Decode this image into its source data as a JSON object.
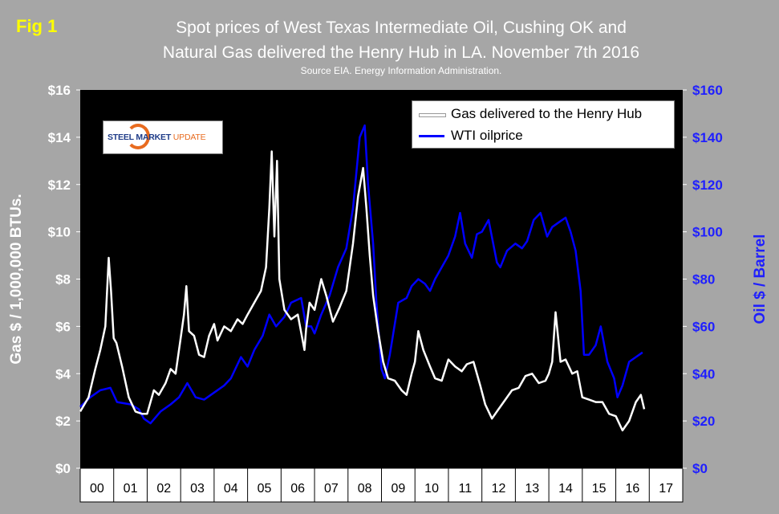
{
  "fig_label": "Fig 1",
  "title_line1": "Spot prices of West Texas Intermediate Oil, Cushing OK and",
  "title_line2": "Natural Gas delivered the Henry Hub in LA. November 7th 2016",
  "subtitle": "Source EIA. Energy Information Administration.",
  "logo": {
    "text_bold": "STEEL MARKET",
    "text_light": "UPDATE"
  },
  "colors": {
    "background": "#a6a6a6",
    "plot": "#000000",
    "gas": "#ffffff",
    "oil": "#0000ff",
    "left_axis": "#ffffff",
    "right_axis": "#1f1fff",
    "x_axis_text": "#000000"
  },
  "chart_data": {
    "type": "line",
    "x_unit": "year",
    "xlim": [
      2000,
      2018
    ],
    "x_tick_labels": [
      "00",
      "01",
      "02",
      "03",
      "04",
      "05",
      "06",
      "07",
      "08",
      "09",
      "10",
      "11",
      "12",
      "13",
      "14",
      "15",
      "16",
      "17"
    ],
    "ylabel_left": "Gas $ / 1,000,000 BTUs.",
    "ylabel_right": "Oil $ / Barrel",
    "ylim_left": [
      0,
      16
    ],
    "ylim_right": [
      0,
      160
    ],
    "y_ticks_left": [
      "$0",
      "$2",
      "$4",
      "$6",
      "$8",
      "$10",
      "$12",
      "$14",
      "$16"
    ],
    "y_ticks_right": [
      "$0",
      "$20",
      "$40",
      "$60",
      "$80",
      "$100",
      "$120",
      "$140",
      "$160"
    ],
    "grid": false,
    "legend_position": "top-right",
    "series": [
      {
        "name": "Gas delivered to the Henry Hub",
        "axis": "left",
        "color": "#ffffff",
        "x": [
          2000.0,
          2000.25,
          2000.45,
          2000.6,
          2000.75,
          2000.85,
          2000.92,
          2001.0,
          2001.08,
          2001.25,
          2001.45,
          2001.65,
          2001.85,
          2002.0,
          2002.2,
          2002.35,
          2002.55,
          2002.7,
          2002.85,
          2003.0,
          2003.1,
          2003.17,
          2003.25,
          2003.4,
          2003.55,
          2003.7,
          2003.85,
          2004.0,
          2004.1,
          2004.3,
          2004.5,
          2004.7,
          2004.85,
          2005.0,
          2005.2,
          2005.4,
          2005.55,
          2005.65,
          2005.72,
          2005.8,
          2005.88,
          2005.95,
          2006.1,
          2006.3,
          2006.5,
          2006.7,
          2006.75,
          2006.85,
          2007.0,
          2007.2,
          2007.35,
          2007.55,
          2007.75,
          2007.95,
          2008.15,
          2008.3,
          2008.45,
          2008.55,
          2008.65,
          2008.75,
          2008.9,
          2009.05,
          2009.2,
          2009.4,
          2009.6,
          2009.75,
          2009.9,
          2010.0,
          2010.1,
          2010.25,
          2010.45,
          2010.6,
          2010.8,
          2011.0,
          2011.2,
          2011.4,
          2011.55,
          2011.75,
          2011.95,
          2012.1,
          2012.3,
          2012.5,
          2012.7,
          2012.9,
          2013.1,
          2013.3,
          2013.5,
          2013.7,
          2013.9,
          2014.0,
          2014.1,
          2014.2,
          2014.35,
          2014.5,
          2014.7,
          2014.85,
          2015.0,
          2015.2,
          2015.4,
          2015.6,
          2015.8,
          2016.0,
          2016.2,
          2016.4,
          2016.6,
          2016.75,
          2016.85
        ],
        "y": [
          2.4,
          3.0,
          4.2,
          5.0,
          6.0,
          8.9,
          7.5,
          5.5,
          5.3,
          4.3,
          3.0,
          2.4,
          2.3,
          2.3,
          3.3,
          3.1,
          3.6,
          4.2,
          4.0,
          5.5,
          6.5,
          7.7,
          5.8,
          5.6,
          4.8,
          4.7,
          5.6,
          6.1,
          5.4,
          6.0,
          5.8,
          6.3,
          6.1,
          6.5,
          7.0,
          7.5,
          8.5,
          11.0,
          13.4,
          9.8,
          13.0,
          8.0,
          6.7,
          6.3,
          6.5,
          5.0,
          5.9,
          7.0,
          6.7,
          8.0,
          7.3,
          6.2,
          6.8,
          7.5,
          9.5,
          11.5,
          12.7,
          11.0,
          9.0,
          7.3,
          5.8,
          4.5,
          3.8,
          3.7,
          3.3,
          3.1,
          4.0,
          4.5,
          5.8,
          5.0,
          4.3,
          3.8,
          3.7,
          4.6,
          4.3,
          4.1,
          4.4,
          4.5,
          3.5,
          2.7,
          2.1,
          2.5,
          2.9,
          3.3,
          3.4,
          3.9,
          4.0,
          3.6,
          3.7,
          4.0,
          4.5,
          6.6,
          4.5,
          4.6,
          4.0,
          4.1,
          3.0,
          2.9,
          2.8,
          2.8,
          2.3,
          2.2,
          1.6,
          2.0,
          2.8,
          3.1,
          2.5
        ]
      },
      {
        "name": "WTI oilprice",
        "axis": "right",
        "color": "#0000ff",
        "x": [
          2000.0,
          2000.3,
          2000.6,
          2000.9,
          2001.1,
          2001.5,
          2001.75,
          2001.9,
          2002.1,
          2002.4,
          2002.7,
          2002.95,
          2003.2,
          2003.45,
          2003.7,
          2004.0,
          2004.3,
          2004.5,
          2004.8,
          2005.0,
          2005.2,
          2005.45,
          2005.65,
          2005.85,
          2006.1,
          2006.3,
          2006.6,
          2006.75,
          2006.9,
          2007.0,
          2007.2,
          2007.45,
          2007.7,
          2007.95,
          2008.15,
          2008.35,
          2008.5,
          2008.6,
          2008.75,
          2008.85,
          2009.0,
          2009.1,
          2009.25,
          2009.5,
          2009.75,
          2009.9,
          2010.1,
          2010.3,
          2010.45,
          2010.6,
          2010.8,
          2011.0,
          2011.2,
          2011.35,
          2011.5,
          2011.7,
          2011.85,
          2012.0,
          2012.2,
          2012.45,
          2012.55,
          2012.75,
          2013.0,
          2013.2,
          2013.35,
          2013.55,
          2013.75,
          2013.95,
          2014.1,
          2014.3,
          2014.5,
          2014.65,
          2014.8,
          2014.95,
          2015.05,
          2015.2,
          2015.4,
          2015.55,
          2015.75,
          2015.95,
          2016.05,
          2016.2,
          2016.4,
          2016.6,
          2016.7,
          2016.8
        ],
        "y": [
          26,
          30,
          33,
          34,
          28,
          27,
          25,
          21,
          19,
          24,
          27,
          30,
          36,
          30,
          29,
          32,
          35,
          38,
          47,
          43,
          50,
          56,
          65,
          60,
          64,
          70,
          72,
          60,
          60,
          57,
          65,
          73,
          85,
          93,
          110,
          140,
          145,
          120,
          95,
          70,
          42,
          38,
          48,
          70,
          72,
          77,
          80,
          78,
          75,
          80,
          85,
          90,
          98,
          108,
          95,
          89,
          99,
          100,
          105,
          87,
          85,
          92,
          95,
          93,
          96,
          105,
          108,
          98,
          102,
          104,
          106,
          100,
          92,
          75,
          48,
          48,
          52,
          60,
          45,
          38,
          30,
          35,
          45,
          47,
          48,
          49
        ]
      }
    ]
  }
}
